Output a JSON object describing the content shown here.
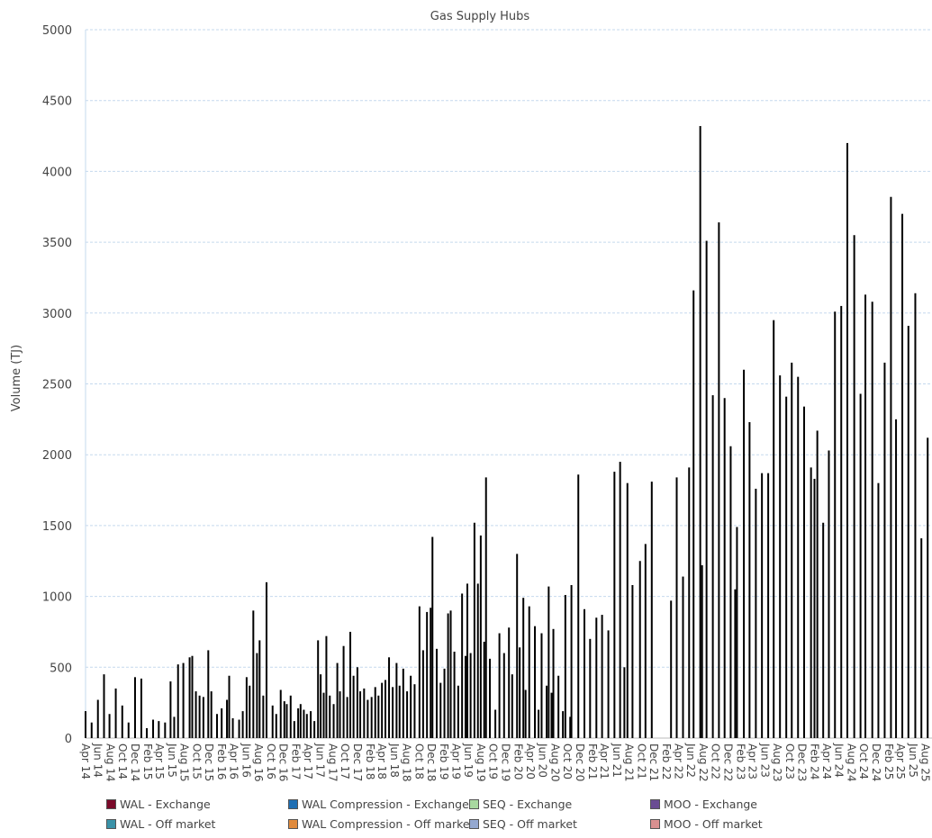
{
  "chart_data": {
    "type": "bar",
    "title": "Gas Supply Hubs",
    "xlabel": "",
    "ylabel": "Volume (TJ)",
    "ylim": [
      0,
      5000
    ],
    "yticks": [
      0,
      500,
      1000,
      1500,
      2000,
      2500,
      3000,
      3500,
      4000,
      4500,
      5000
    ],
    "xlim": [
      "2014-04-01",
      "2025-08-20"
    ],
    "grid": true,
    "bar_color": "#000000",
    "grid_color": "#c5d9ee",
    "legend_position": "bottom",
    "xtick_labels": [
      "Apr 14",
      "Jun 14",
      "Aug 14",
      "Oct 14",
      "Dec 14",
      "Feb 15",
      "Apr 15",
      "Jun 15",
      "Aug 15",
      "Oct 15",
      "Dec 15",
      "Feb 16",
      "Apr 16",
      "Jun 16",
      "Aug 16",
      "Oct 16",
      "Dec 16",
      "Feb 17",
      "Apr 17",
      "Jun 17",
      "Aug 17",
      "Oct 17",
      "Dec 17",
      "Feb 18",
      "Apr 18",
      "Jun 18",
      "Aug 18",
      "Oct 18",
      "Dec 18",
      "Feb 19",
      "Apr 19",
      "Jun 19",
      "Aug 19",
      "Oct 19",
      "Dec 19",
      "Feb 20",
      "Apr 20",
      "Jun 20",
      "Aug 20",
      "Oct 20",
      "Dec 20",
      "Feb 21",
      "Apr 21",
      "Jun 21",
      "Aug 21",
      "Oct 21",
      "Dec 21",
      "Feb 22",
      "Apr 22",
      "Jun 22",
      "Aug 22",
      "Oct 22",
      "Dec 22",
      "Feb 23",
      "Apr 23",
      "Jun 23",
      "Aug 23",
      "Oct 23",
      "Dec 23",
      "Feb 24",
      "Apr 24",
      "Jun 24",
      "Aug 24",
      "Oct 24",
      "Dec 24",
      "Feb 25",
      "Apr 25",
      "Jun 25",
      "Aug 25"
    ],
    "legend": [
      {
        "name": "WAL - Exchange",
        "color": "#7b0a2a"
      },
      {
        "name": "WAL Compression - Exchange",
        "color": "#1f6fb4"
      },
      {
        "name": "SEQ - Exchange",
        "color": "#a8d8a0"
      },
      {
        "name": "MOO - Exchange",
        "color": "#6a4c93"
      },
      {
        "name": "WAL - Off market",
        "color": "#3a92a8"
      },
      {
        "name": "WAL Compression - Off market",
        "color": "#e08a3c"
      },
      {
        "name": "SEQ - Off market",
        "color": "#94a8d0"
      },
      {
        "name": "MOO - Off market",
        "color": "#d89090"
      }
    ],
    "points": [
      [
        "2014-04-01",
        190
      ],
      [
        "2014-05-01",
        110
      ],
      [
        "2014-06-01",
        270
      ],
      [
        "2014-07-01",
        450
      ],
      [
        "2014-07-28",
        170
      ],
      [
        "2014-08-28",
        350
      ],
      [
        "2014-09-29",
        230
      ],
      [
        "2014-10-30",
        110
      ],
      [
        "2014-12-01",
        430
      ],
      [
        "2015-01-01",
        420
      ],
      [
        "2015-01-28",
        70
      ],
      [
        "2015-02-28",
        130
      ],
      [
        "2015-03-28",
        120
      ],
      [
        "2015-04-28",
        110
      ],
      [
        "2015-05-25",
        400
      ],
      [
        "2015-06-12",
        150
      ],
      [
        "2015-07-01",
        520
      ],
      [
        "2015-07-27",
        530
      ],
      [
        "2015-08-27",
        570
      ],
      [
        "2015-09-09",
        580
      ],
      [
        "2015-09-27",
        330
      ],
      [
        "2015-10-15",
        300
      ],
      [
        "2015-11-03",
        290
      ],
      [
        "2015-11-27",
        620
      ],
      [
        "2015-12-12",
        330
      ],
      [
        "2016-01-09",
        170
      ],
      [
        "2016-02-01",
        210
      ],
      [
        "2016-02-27",
        270
      ],
      [
        "2016-03-09",
        440
      ],
      [
        "2016-03-27",
        140
      ],
      [
        "2016-04-27",
        130
      ],
      [
        "2016-05-15",
        190
      ],
      [
        "2016-06-03",
        430
      ],
      [
        "2016-06-18",
        370
      ],
      [
        "2016-07-06",
        900
      ],
      [
        "2016-07-24",
        600
      ],
      [
        "2016-08-06",
        690
      ],
      [
        "2016-08-24",
        300
      ],
      [
        "2016-09-09",
        1100
      ],
      [
        "2016-10-09",
        230
      ],
      [
        "2016-10-27",
        170
      ],
      [
        "2016-11-18",
        340
      ],
      [
        "2016-12-06",
        260
      ],
      [
        "2016-12-18",
        240
      ],
      [
        "2017-01-06",
        300
      ],
      [
        "2017-01-24",
        120
      ],
      [
        "2017-02-12",
        210
      ],
      [
        "2017-02-24",
        240
      ],
      [
        "2017-03-12",
        200
      ],
      [
        "2017-03-27",
        170
      ],
      [
        "2017-04-15",
        190
      ],
      [
        "2017-05-03",
        120
      ],
      [
        "2017-05-21",
        690
      ],
      [
        "2017-06-03",
        450
      ],
      [
        "2017-06-18",
        320
      ],
      [
        "2017-07-01",
        720
      ],
      [
        "2017-07-18",
        300
      ],
      [
        "2017-08-06",
        240
      ],
      [
        "2017-08-24",
        530
      ],
      [
        "2017-09-06",
        330
      ],
      [
        "2017-09-24",
        650
      ],
      [
        "2017-10-12",
        290
      ],
      [
        "2017-10-27",
        750
      ],
      [
        "2017-11-12",
        440
      ],
      [
        "2017-12-01",
        500
      ],
      [
        "2017-12-15",
        330
      ],
      [
        "2018-01-03",
        350
      ],
      [
        "2018-01-21",
        270
      ],
      [
        "2018-02-09",
        290
      ],
      [
        "2018-02-27",
        360
      ],
      [
        "2018-03-15",
        300
      ],
      [
        "2018-04-01",
        390
      ],
      [
        "2018-04-18",
        410
      ],
      [
        "2018-05-06",
        570
      ],
      [
        "2018-05-24",
        360
      ],
      [
        "2018-06-12",
        530
      ],
      [
        "2018-06-27",
        370
      ],
      [
        "2018-07-15",
        490
      ],
      [
        "2018-08-03",
        330
      ],
      [
        "2018-08-21",
        440
      ],
      [
        "2018-09-09",
        380
      ],
      [
        "2018-10-03",
        930
      ],
      [
        "2018-10-21",
        620
      ],
      [
        "2018-11-09",
        890
      ],
      [
        "2018-11-27",
        920
      ],
      [
        "2018-12-06",
        1420
      ],
      [
        "2018-12-27",
        630
      ],
      [
        "2019-01-15",
        390
      ],
      [
        "2019-02-03",
        490
      ],
      [
        "2019-02-21",
        880
      ],
      [
        "2019-03-06",
        900
      ],
      [
        "2019-03-24",
        610
      ],
      [
        "2019-04-12",
        370
      ],
      [
        "2019-05-01",
        1020
      ],
      [
        "2019-05-18",
        580
      ],
      [
        "2019-05-27",
        1090
      ],
      [
        "2019-06-12",
        600
      ],
      [
        "2019-07-01",
        1520
      ],
      [
        "2019-07-18",
        1090
      ],
      [
        "2019-08-01",
        1430
      ],
      [
        "2019-08-18",
        680
      ],
      [
        "2019-08-27",
        1840
      ],
      [
        "2019-09-15",
        560
      ],
      [
        "2019-10-12",
        200
      ],
      [
        "2019-11-01",
        740
      ],
      [
        "2019-11-24",
        600
      ],
      [
        "2019-12-18",
        780
      ],
      [
        "2020-01-03",
        450
      ],
      [
        "2020-01-27",
        1300
      ],
      [
        "2020-02-09",
        640
      ],
      [
        "2020-02-27",
        990
      ],
      [
        "2020-03-09",
        340
      ],
      [
        "2020-03-27",
        930
      ],
      [
        "2020-04-24",
        790
      ],
      [
        "2020-05-12",
        200
      ],
      [
        "2020-05-27",
        740
      ],
      [
        "2020-06-21",
        370
      ],
      [
        "2020-07-01",
        1070
      ],
      [
        "2020-07-15",
        320
      ],
      [
        "2020-07-24",
        770
      ],
      [
        "2020-08-18",
        440
      ],
      [
        "2020-09-09",
        190
      ],
      [
        "2020-09-21",
        1010
      ],
      [
        "2020-10-15",
        150
      ],
      [
        "2020-10-21",
        1080
      ],
      [
        "2020-11-24",
        1860
      ],
      [
        "2020-12-24",
        910
      ],
      [
        "2021-01-21",
        700
      ],
      [
        "2021-02-21",
        850
      ],
      [
        "2021-03-21",
        870
      ],
      [
        "2021-04-21",
        760
      ],
      [
        "2021-05-21",
        1880
      ],
      [
        "2021-06-18",
        1950
      ],
      [
        "2021-07-09",
        500
      ],
      [
        "2021-07-24",
        1800
      ],
      [
        "2021-08-18",
        1080
      ],
      [
        "2021-09-24",
        1250
      ],
      [
        "2021-10-21",
        1370
      ],
      [
        "2021-11-21",
        1810
      ],
      [
        "2022-02-24",
        970
      ],
      [
        "2022-03-24",
        1840
      ],
      [
        "2022-04-24",
        1140
      ],
      [
        "2022-05-24",
        1910
      ],
      [
        "2022-06-15",
        3160
      ],
      [
        "2022-07-18",
        4320
      ],
      [
        "2022-07-27",
        1220
      ],
      [
        "2022-08-18",
        3510
      ],
      [
        "2022-09-18",
        2420
      ],
      [
        "2022-10-18",
        3640
      ],
      [
        "2022-11-15",
        2400
      ],
      [
        "2022-12-15",
        2060
      ],
      [
        "2023-01-06",
        1050
      ],
      [
        "2023-01-15",
        1490
      ],
      [
        "2023-02-18",
        2600
      ],
      [
        "2023-03-18",
        2230
      ],
      [
        "2023-04-18",
        1760
      ],
      [
        "2023-05-18",
        1870
      ],
      [
        "2023-06-18",
        1870
      ],
      [
        "2023-07-15",
        2950
      ],
      [
        "2023-08-15",
        2560
      ],
      [
        "2023-09-15",
        2410
      ],
      [
        "2023-10-12",
        2650
      ],
      [
        "2023-11-12",
        2550
      ],
      [
        "2023-12-12",
        2340
      ],
      [
        "2024-01-15",
        1910
      ],
      [
        "2024-02-01",
        1830
      ],
      [
        "2024-02-15",
        2170
      ],
      [
        "2024-03-15",
        1520
      ],
      [
        "2024-04-12",
        2030
      ],
      [
        "2024-05-12",
        3010
      ],
      [
        "2024-06-12",
        3050
      ],
      [
        "2024-07-12",
        4200
      ],
      [
        "2024-08-15",
        3550
      ],
      [
        "2024-09-15",
        2430
      ],
      [
        "2024-10-09",
        3130
      ],
      [
        "2024-11-12",
        3080
      ],
      [
        "2024-12-12",
        1800
      ],
      [
        "2025-01-12",
        2650
      ],
      [
        "2025-02-12",
        3820
      ],
      [
        "2025-03-09",
        2250
      ],
      [
        "2025-04-09",
        3700
      ],
      [
        "2025-05-09",
        2910
      ],
      [
        "2025-06-12",
        3140
      ],
      [
        "2025-07-12",
        1410
      ],
      [
        "2025-08-12",
        2120
      ]
    ]
  }
}
